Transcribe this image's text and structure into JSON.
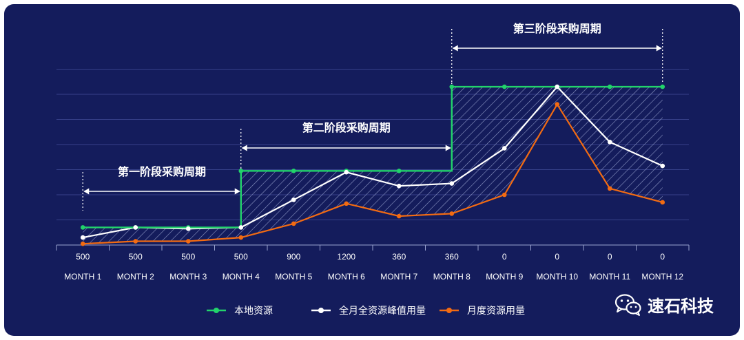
{
  "chart_data": {
    "type": "line",
    "categories": [
      "MONTH 1",
      "MONTH 2",
      "MONTH 3",
      "MONTH 4",
      "MONTH 5",
      "MONTH 6",
      "MONTH 7",
      "MONTH 8",
      "MONTH 9",
      "MONTH 10",
      "MONTH 11",
      "MONTH 12"
    ],
    "value_labels": [
      "500",
      "500",
      "500",
      "500",
      "900",
      "1200",
      "360",
      "360",
      "0",
      "0",
      "0",
      "0"
    ],
    "series": [
      {
        "name": "本地资源",
        "color": "#22d36b",
        "step": true,
        "values": [
          0.7,
          0.7,
          0.7,
          2.95,
          2.95,
          2.95,
          2.95,
          6.3,
          6.3,
          6.3,
          6.3,
          6.3
        ]
      },
      {
        "name": "全月全资源峰值用量",
        "color": "#ffffff",
        "values": [
          0.3,
          0.7,
          0.65,
          0.7,
          1.8,
          2.9,
          2.35,
          2.45,
          3.85,
          6.3,
          4.1,
          3.15
        ]
      },
      {
        "name": "月度资源用量",
        "color": "#f36b12",
        "values": [
          0.05,
          0.15,
          0.15,
          0.3,
          0.85,
          1.65,
          1.15,
          1.25,
          2.0,
          5.6,
          2.25,
          1.7
        ]
      }
    ],
    "ylim": [
      0,
      7
    ],
    "grid": true,
    "legend_position": "bottom-center",
    "annotations": [
      {
        "label": "第一阶段采购周期",
        "from_month": 1,
        "to_month": 4
      },
      {
        "label": "第二阶段采购周期",
        "from_month": 4,
        "to_month": 8
      },
      {
        "label": "第三阶段采购周期",
        "from_month": 8,
        "to_month": 12
      }
    ]
  },
  "brand": {
    "name": "速石科技",
    "icon": "wechat-icon"
  }
}
